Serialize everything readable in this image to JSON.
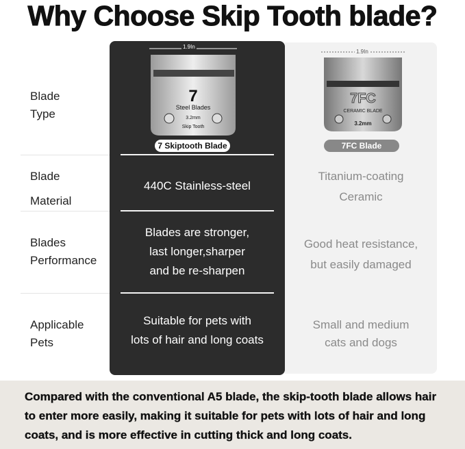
{
  "title": "Why Choose Skip Tooth blade?",
  "row_labels": [
    {
      "line1": "Blade",
      "line2": "Type"
    },
    {
      "line1": "Blade",
      "line2": "Material"
    },
    {
      "line1": "Blades",
      "line2": "Performance"
    },
    {
      "line1": "Applicable",
      "line2": "Pets"
    }
  ],
  "skip_tooth": {
    "width_label": "1.9In",
    "blade_number": "7",
    "blade_text": "Steel Blades",
    "blade_size": "3.2mm",
    "blade_sub": "Skip Tooth",
    "name": "7 Skiptooth Blade",
    "material": "440C Stainless-steel",
    "performance": [
      "Blades are stronger,",
      "last longer,sharper",
      "and be re-sharpen"
    ],
    "pets": [
      "Suitable for pets with",
      "lots of hair and long coats"
    ]
  },
  "fc": {
    "width_label": "1.9In",
    "blade_number": "7FC",
    "blade_text": "CERAMIC BLADE",
    "blade_size": "3.2mm",
    "name": "7FC Blade",
    "material": [
      "Titanium-coating",
      "Ceramic"
    ],
    "performance": [
      "Good heat resistance,",
      "but easily damaged"
    ],
    "pets": [
      "Small and medium",
      "cats and dogs"
    ]
  },
  "footer": "Compared with the conventional A5 blade, the skip-tooth blade allows hair to enter more easily, making it suitable for pets with lots of hair and long coats, and is more effective in cutting thick and long coats.",
  "colors": {
    "dark_panel": "#2c2c2c",
    "light_panel": "#f2f2f2",
    "footer_bg": "#ebe8e3"
  }
}
